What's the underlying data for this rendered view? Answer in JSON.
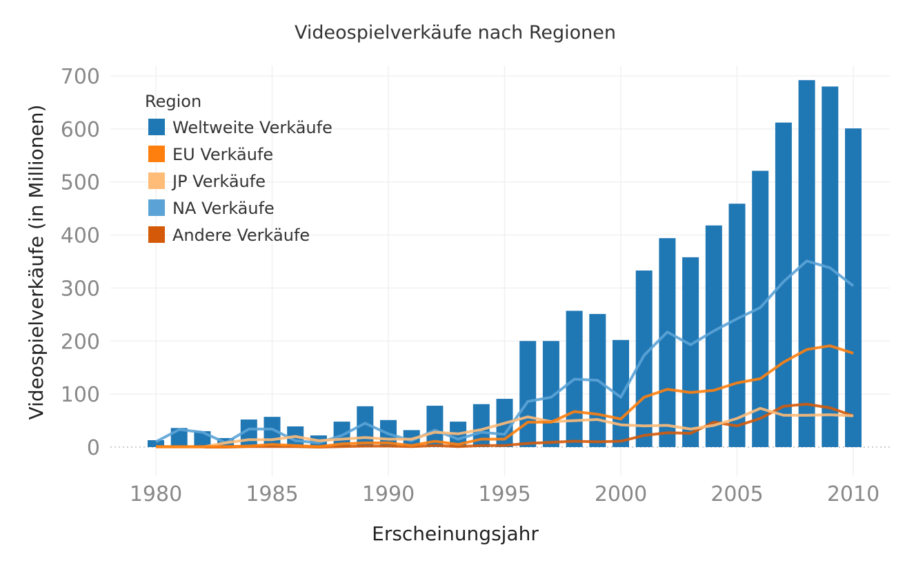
{
  "chart_data": {
    "type": "bar",
    "title": "Videospielverkäufe nach Regionen",
    "xlabel": "Erscheinungsjahr",
    "ylabel": "Videospielverkäufe (in Millionen)",
    "ylim": [
      0,
      700
    ],
    "xlim": [
      1980,
      2010
    ],
    "yticks": [
      "0",
      "100",
      "200",
      "300",
      "400",
      "500",
      "600",
      "700"
    ],
    "xticks": [
      "1980",
      "1985",
      "1990",
      "1995",
      "2000",
      "2005",
      "2010"
    ],
    "grid": true,
    "legend_title": "Region",
    "legend_position": "top-left",
    "x": [
      1980,
      1981,
      1982,
      1983,
      1984,
      1985,
      1986,
      1987,
      1988,
      1989,
      1990,
      1991,
      1992,
      1993,
      1994,
      1995,
      1996,
      1997,
      1998,
      1999,
      2000,
      2001,
      2002,
      2003,
      2004,
      2005,
      2006,
      2007,
      2008,
      2009,
      2010
    ],
    "series": [
      {
        "name": "Weltweite Verkäufe",
        "kind": "bar",
        "color": "#1f77b4",
        "values": [
          13,
          36,
          30,
          17,
          52,
          57,
          39,
          22,
          48,
          77,
          51,
          32,
          78,
          48,
          81,
          91,
          200,
          200,
          257,
          251,
          202,
          333,
          394,
          358,
          418,
          459,
          521,
          612,
          692,
          680,
          601
        ]
      },
      {
        "name": "EU Verkäufe",
        "kind": "line",
        "color": "#ff7f0e",
        "values": [
          1,
          1,
          1,
          1,
          2,
          5,
          3,
          1,
          6,
          8,
          8,
          3,
          11,
          5,
          15,
          15,
          47,
          47,
          67,
          62,
          53,
          94,
          109,
          103,
          107,
          121,
          129,
          160,
          184,
          191,
          177
        ]
      },
      {
        "name": "JP Verkäufe",
        "kind": "line",
        "color": "#ffbb78",
        "values": [
          0,
          0,
          0,
          8,
          14,
          14,
          20,
          12,
          15,
          18,
          15,
          15,
          28,
          25,
          33,
          45,
          57,
          48,
          50,
          52,
          42,
          40,
          41,
          34,
          41,
          54,
          73,
          60,
          60,
          61,
          59
        ]
      },
      {
        "name": "NA Verkäufe",
        "kind": "line",
        "color": "#5ba3d6",
        "values": [
          10,
          33,
          28,
          8,
          34,
          34,
          12,
          8,
          22,
          45,
          25,
          12,
          32,
          15,
          28,
          24,
          86,
          94,
          128,
          126,
          94,
          173,
          217,
          193,
          219,
          242,
          263,
          312,
          351,
          338,
          304
        ]
      },
      {
        "name": "Andere Verkäufe",
        "kind": "line",
        "color": "#d45a0a",
        "values": [
          0,
          0,
          0,
          0,
          1,
          1,
          1,
          0,
          1,
          2,
          2,
          1,
          3,
          1,
          3,
          3,
          7,
          9,
          11,
          10,
          11,
          22,
          27,
          26,
          47,
          40,
          54,
          77,
          81,
          74,
          59
        ]
      }
    ]
  }
}
